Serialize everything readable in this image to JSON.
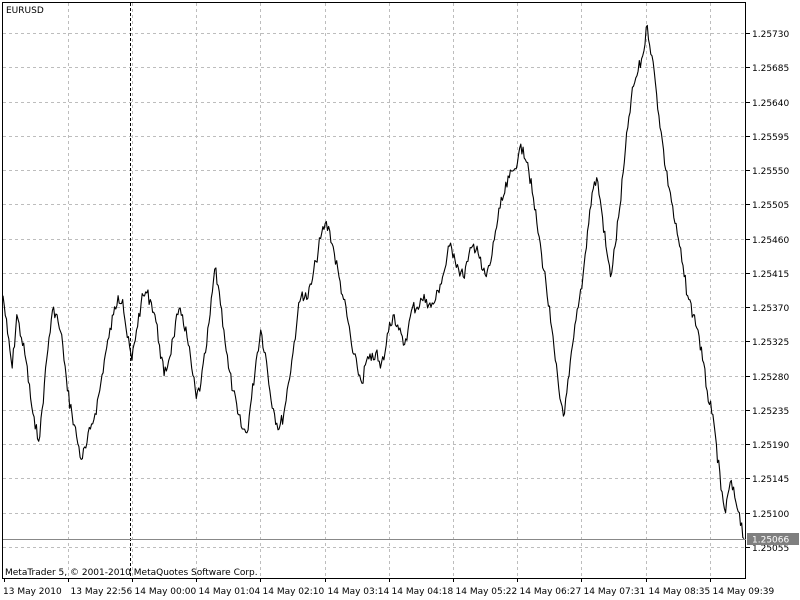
{
  "chart_data": {
    "type": "line",
    "title": "EURUSD",
    "symbol": "EURUSD",
    "xlabel": "",
    "ylabel": "",
    "x_tick_labels": [
      "13 May 2010",
      "13 May 22:56",
      "14 May 00:00",
      "14 May 01:04",
      "14 May 02:10",
      "14 May 03:14",
      "14 May 04:18",
      "14 May 05:22",
      "14 May 06:27",
      "14 May 07:31",
      "14 May 08:35",
      "14 May 09:39"
    ],
    "y_tick_labels": [
      "1.25730",
      "1.25685",
      "1.25640",
      "1.25595",
      "1.25550",
      "1.25505",
      "1.25460",
      "1.25415",
      "1.25370",
      "1.25325",
      "1.25280",
      "1.25235",
      "1.25190",
      "1.25145",
      "1.25100",
      "1.25055"
    ],
    "ylim": [
      1.2504,
      1.2575
    ],
    "grid": true,
    "current_price": "1.25066",
    "copyright": "MetaTrader 5, © 2001-2010 MetaQuotes Software Corp.",
    "series": [
      {
        "values": [
          1.25385,
          1.25335,
          1.2529,
          1.2536,
          1.2533,
          1.253,
          1.2525,
          1.2521,
          1.252,
          1.2527,
          1.2533,
          1.2537,
          1.2535,
          1.2532,
          1.2526,
          1.2523,
          1.252,
          1.2517,
          1.25185,
          1.2521,
          1.2523,
          1.2526,
          1.253,
          1.2533,
          1.2536,
          1.25385,
          1.2538,
          1.2533,
          1.253,
          1.2534,
          1.25375,
          1.2539,
          1.2538,
          1.2536,
          1.2532,
          1.2528,
          1.253,
          1.2533,
          1.2536,
          1.2536,
          1.2533,
          1.2529,
          1.2525,
          1.2527,
          1.2531,
          1.2536,
          1.2542,
          1.2539,
          1.2534,
          1.2529,
          1.2526,
          1.2523,
          1.2521,
          1.25205,
          1.2525,
          1.253,
          1.2534,
          1.2531,
          1.2526,
          1.2523,
          1.2521,
          1.2523,
          1.2527,
          1.2531,
          1.2536,
          1.2539,
          1.2538,
          1.254,
          1.2543,
          1.2546,
          1.2548,
          1.2547,
          1.2544,
          1.2541,
          1.2538,
          1.2535,
          1.2531,
          1.2529,
          1.2527,
          1.253,
          1.253,
          1.2531,
          1.2529,
          1.2531,
          1.2535,
          1.2536,
          1.2534,
          1.2532,
          1.2534,
          1.2537,
          1.2537,
          1.2538,
          1.2538,
          1.2537,
          1.2538,
          1.254,
          1.2542,
          1.2545,
          1.2544,
          1.2542,
          1.2541,
          1.2543,
          1.2545,
          1.2545,
          1.2542,
          1.2541,
          1.2543,
          1.2547,
          1.255,
          1.2552,
          1.2554,
          1.2555,
          1.2557,
          1.2558,
          1.2556,
          1.2552,
          1.2548,
          1.2544,
          1.254,
          1.2535,
          1.253,
          1.2525,
          1.2523,
          1.2528,
          1.2533,
          1.2537,
          1.2541,
          1.2547,
          1.2552,
          1.2554,
          1.255,
          1.2545,
          1.2541,
          1.2545,
          1.255,
          1.2556,
          1.2562,
          1.2566,
          1.2568,
          1.257,
          1.2574,
          1.257,
          1.2565,
          1.256,
          1.2555,
          1.2552,
          1.2548,
          1.2545,
          1.2541,
          1.2538,
          1.2536,
          1.2534,
          1.253,
          1.2526,
          1.2523,
          1.2519,
          1.2513,
          1.251,
          1.2514,
          1.2512,
          1.251,
          1.25066
        ]
      }
    ]
  }
}
